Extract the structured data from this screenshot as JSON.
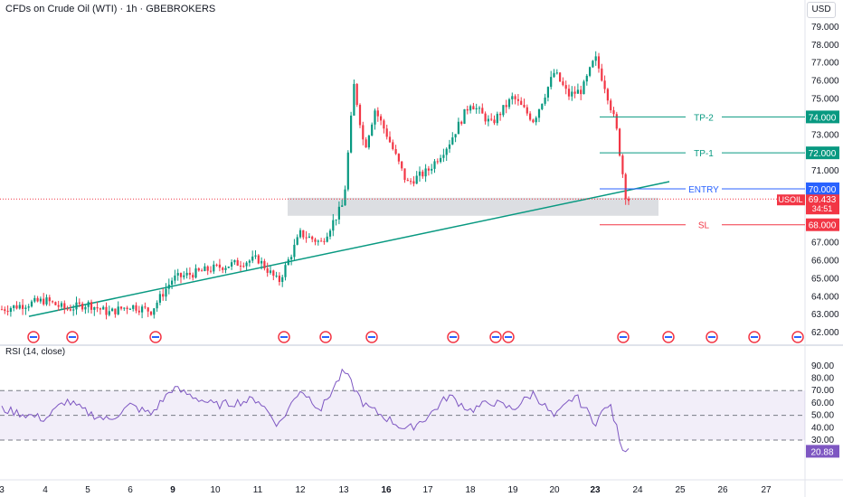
{
  "header": {
    "title": "CFDs on Crude Oil (WTI) · 1h · GBEBROKERS",
    "currency": "USD"
  },
  "rsi": {
    "title": "RSI (14, close)",
    "current": "20.88",
    "levels": [
      70,
      50,
      30
    ],
    "ticks": [
      "90.00",
      "80.00",
      "70.00",
      "60.00",
      "50.00",
      "40.00",
      "30.00"
    ]
  },
  "colors": {
    "up": "#089981",
    "down": "#f23645",
    "trend": "#089981",
    "tp": "#089981",
    "sl": "#f23645",
    "entry": "#2962ff",
    "rsi": "#7e57c2"
  },
  "chart_data": {
    "type": "candlestick",
    "symbol": "USOIL",
    "last_price": "69.433",
    "countdown": "34:51",
    "y_ticks": [
      "79.000",
      "78.000",
      "77.000",
      "76.000",
      "75.000",
      "74.000",
      "73.000",
      "72.000",
      "71.000",
      "70.000",
      "69.000",
      "68.000",
      "67.000",
      "66.000",
      "65.000",
      "64.000",
      "63.000",
      "62.000"
    ],
    "ylim": [
      61.5,
      79.6
    ],
    "x_ticks": [
      "3",
      "4",
      "5",
      "6",
      "9",
      "10",
      "11",
      "12",
      "13",
      "16",
      "17",
      "18",
      "19",
      "20",
      "23",
      "24",
      "25",
      "26",
      "27"
    ],
    "x_bold_ticks": [
      "9",
      "16",
      "23"
    ],
    "levels": [
      {
        "label": "TP-2",
        "value": 74.0,
        "tag": "74.000"
      },
      {
        "label": "TP-1",
        "value": 72.0,
        "tag": "72.000"
      },
      {
        "label": "ENTRY",
        "value": 70.0,
        "tag": "70.000"
      },
      {
        "label": "SL",
        "value": 68.0,
        "tag": "68.000"
      }
    ],
    "zone": {
      "low": 68.5,
      "high": 69.5
    },
    "trendline": {
      "from_day": "3",
      "from_price": 62.9,
      "to_day": "24",
      "to_price": 70.4
    },
    "price_path": [
      [
        "3",
        63.3
      ],
      [
        "4",
        63.8
      ],
      [
        "4",
        63.3
      ],
      [
        "5",
        63.6
      ],
      [
        "5",
        63.1
      ],
      [
        "6",
        63.5
      ],
      [
        "6",
        63.2
      ],
      [
        "9",
        65.0
      ],
      [
        "10",
        65.6
      ],
      [
        "11",
        66.1
      ],
      [
        "11",
        64.8
      ],
      [
        "12",
        67.5
      ],
      [
        "12",
        67.0
      ],
      [
        "13",
        69.2
      ],
      [
        "13",
        75.8
      ],
      [
        "13",
        72.2
      ],
      [
        "13",
        74.4
      ],
      [
        "16",
        73.1
      ],
      [
        "16",
        70.3
      ],
      [
        "17",
        71.0
      ],
      [
        "17",
        72.5
      ],
      [
        "18",
        74.8
      ],
      [
        "18",
        73.6
      ],
      [
        "19",
        75.1
      ],
      [
        "19",
        73.8
      ],
      [
        "20",
        76.5
      ],
      [
        "20",
        75.2
      ],
      [
        "20",
        75.5
      ],
      [
        "23",
        77.3
      ],
      [
        "23",
        75.6
      ],
      [
        "23",
        73.5
      ],
      [
        "23",
        69.4
      ]
    ],
    "rsi_path": [
      [
        "3",
        55
      ],
      [
        "4",
        47
      ],
      [
        "4",
        62
      ],
      [
        "5",
        52
      ],
      [
        "5",
        46
      ],
      [
        "6",
        58
      ],
      [
        "6",
        51
      ],
      [
        "9",
        72
      ],
      [
        "10",
        58
      ],
      [
        "11",
        63
      ],
      [
        "11",
        42
      ],
      [
        "12",
        71
      ],
      [
        "12",
        55
      ],
      [
        "13",
        86
      ],
      [
        "13",
        58
      ],
      [
        "16",
        48
      ],
      [
        "16",
        38
      ],
      [
        "17",
        49
      ],
      [
        "17",
        66
      ],
      [
        "18",
        54
      ],
      [
        "18",
        61
      ],
      [
        "19",
        55
      ],
      [
        "19",
        68
      ],
      [
        "20",
        48
      ],
      [
        "20",
        66
      ],
      [
        "23",
        44
      ],
      [
        "23",
        60
      ],
      [
        "23",
        23
      ]
    ]
  }
}
